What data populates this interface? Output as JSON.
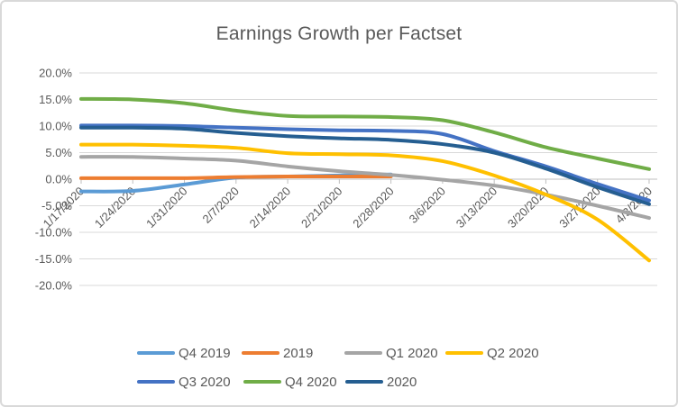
{
  "chart": {
    "title": "Earnings Growth per Factset"
  },
  "chart_data": {
    "type": "line",
    "title": "Earnings Growth per Factset",
    "x_labels": [
      "1/17/2020",
      "1/24/2020",
      "1/31/2020",
      "2/7/2020",
      "2/14/2020",
      "2/21/2020",
      "2/28/2020",
      "3/6/2020",
      "3/13/2020",
      "3/20/2020",
      "3/27/2020",
      "4/3/2020"
    ],
    "y_tick_labels": [
      "20.0%",
      "15.0%",
      "10.0%",
      "5.0%",
      "0.0%",
      "-5.0%",
      "-10.0%",
      "-15.0%",
      "-20.0%"
    ],
    "ylim": [
      -20,
      20
    ],
    "y_major_step": 5,
    "grid": true,
    "legend_position": "bottom",
    "series": [
      {
        "name": "Q4 2019",
        "color": "#5B9BD5",
        "values": [
          -2.3,
          -2.2,
          -1.0,
          0.3,
          0.5,
          0.7,
          0.9,
          null,
          null,
          null,
          null,
          null
        ]
      },
      {
        "name": "2019",
        "color": "#ED7D31",
        "values": [
          0.2,
          0.2,
          0.2,
          0.4,
          0.5,
          0.5,
          0.5,
          null,
          null,
          null,
          null,
          null
        ]
      },
      {
        "name": "Q1 2020",
        "color": "#A5A5A5",
        "values": [
          4.2,
          4.2,
          3.9,
          3.5,
          2.4,
          1.5,
          0.8,
          -0.1,
          -1.2,
          -2.9,
          -5.0,
          -7.3
        ]
      },
      {
        "name": "Q2 2020",
        "color": "#FFC000",
        "values": [
          6.5,
          6.5,
          6.3,
          5.9,
          4.9,
          4.7,
          4.5,
          3.4,
          0.7,
          -2.9,
          -7.6,
          -15.3
        ]
      },
      {
        "name": "Q3 2020",
        "color": "#4472C4",
        "values": [
          10.1,
          10.1,
          10.0,
          9.7,
          9.4,
          9.2,
          9.1,
          8.5,
          5.3,
          2.4,
          -0.9,
          -4.0
        ]
      },
      {
        "name": "Q4 2020",
        "color": "#70AD47",
        "values": [
          15.1,
          15.0,
          14.3,
          12.9,
          11.9,
          11.8,
          11.7,
          11.1,
          8.8,
          6.0,
          3.9,
          1.9
        ]
      },
      {
        "name": "2020",
        "color": "#255E91",
        "values": [
          9.7,
          9.7,
          9.5,
          8.7,
          8.1,
          7.7,
          7.4,
          6.6,
          5.0,
          2.0,
          -1.5,
          -4.7
        ]
      }
    ],
    "legend_rows": [
      [
        "Q4 2019",
        "2019",
        "Q1 2020",
        "Q2 2020"
      ],
      [
        "Q3 2020",
        "Q4 2020",
        "2020"
      ]
    ]
  },
  "colors": {
    "grid": "#D9D9D9",
    "axis": "#BFBFBF",
    "text": "#595959",
    "border": "#D9D9D9",
    "background": "#FFFFFF"
  }
}
